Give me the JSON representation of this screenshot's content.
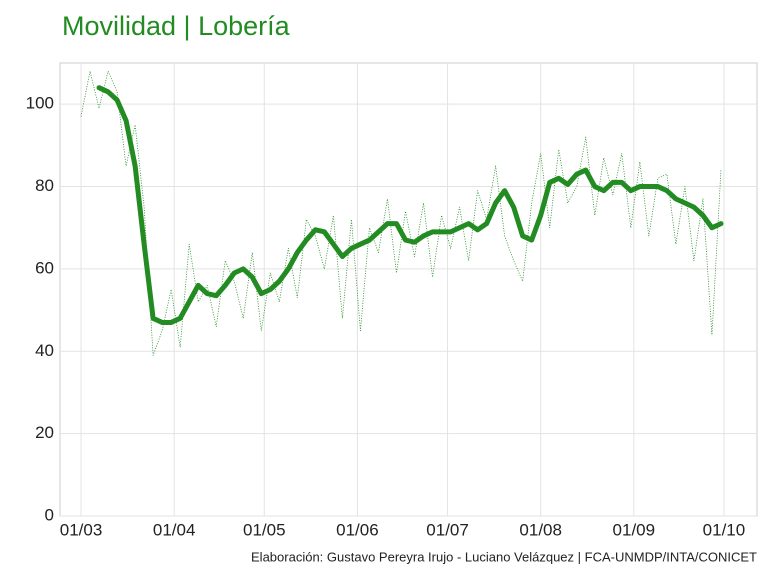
{
  "chart_data": {
    "type": "line",
    "title": "Movilidad | Lobería",
    "caption": "Elaboración: Gustavo Pereyra Irujo - Luciano Velázquez | FCA-UNMDP/INTA/CONICET",
    "title_color": "#228b22",
    "grid": true,
    "x": [
      0,
      3,
      6,
      9,
      12,
      15,
      18,
      21,
      24,
      27,
      30,
      33,
      36,
      39,
      42,
      45,
      48,
      51,
      54,
      57,
      60,
      63,
      66,
      69,
      72,
      75,
      78,
      81,
      84,
      87,
      90,
      93,
      96,
      99,
      102,
      105,
      108,
      111,
      114,
      117,
      120,
      123,
      126,
      129,
      132,
      135,
      138,
      141,
      144,
      147,
      150,
      153,
      156,
      159,
      162,
      165,
      168,
      171,
      174,
      177,
      180,
      183,
      186,
      189,
      192,
      195,
      198,
      201,
      204,
      207,
      210,
      213
    ],
    "xlim": [
      -7,
      225
    ],
    "xticks": [
      {
        "value": 0,
        "label": "01/03"
      },
      {
        "value": 31,
        "label": "01/04"
      },
      {
        "value": 61,
        "label": "01/05"
      },
      {
        "value": 92,
        "label": "01/06"
      },
      {
        "value": 122,
        "label": "01/07"
      },
      {
        "value": 153,
        "label": "01/08"
      },
      {
        "value": 184,
        "label": "01/09"
      },
      {
        "value": 214,
        "label": "01/10"
      }
    ],
    "ylim": [
      0,
      110
    ],
    "yticks": [
      0,
      20,
      40,
      60,
      80,
      100
    ],
    "series": [
      {
        "color": "#228b22",
        "style": "dotted",
        "width": 0.8,
        "values": [
          97,
          108,
          99,
          108,
          103,
          85,
          95,
          75,
          39,
          45,
          55,
          41,
          66,
          52,
          56,
          46,
          62,
          57,
          48,
          64,
          45,
          59,
          52,
          65,
          53,
          72,
          68,
          60,
          73,
          48,
          72,
          45,
          70,
          64,
          77,
          59,
          74,
          63,
          76,
          58,
          73,
          65,
          75,
          62,
          79,
          72,
          85,
          68,
          62,
          57,
          76,
          88,
          70,
          89,
          76,
          80,
          92,
          73,
          87,
          78,
          88,
          70,
          86,
          68,
          82,
          83,
          66,
          80,
          62,
          77,
          44,
          84
        ]
      },
      {
        "color": "#228b22",
        "style": "solid",
        "width": 5,
        "values": [
          null,
          null,
          104,
          103,
          101,
          96,
          85,
          66,
          48,
          47,
          47,
          48,
          52,
          56,
          54,
          53.5,
          56,
          59,
          60,
          58,
          54,
          55,
          57,
          60,
          64,
          67,
          69.5,
          69,
          66,
          63,
          65,
          66,
          67,
          69,
          71,
          71,
          67,
          66.5,
          68,
          69,
          69,
          69,
          70,
          71,
          69.5,
          71,
          76,
          79,
          75,
          68,
          67,
          73,
          81,
          82,
          80.5,
          83,
          84,
          80,
          79,
          81,
          81,
          79,
          80,
          80,
          80,
          79,
          77,
          76,
          75,
          73,
          70,
          71
        ]
      }
    ]
  }
}
